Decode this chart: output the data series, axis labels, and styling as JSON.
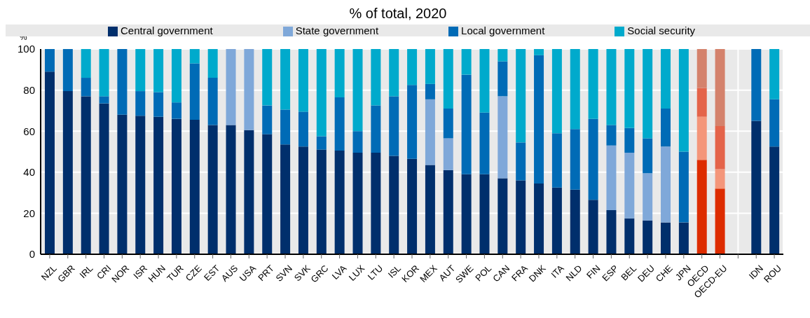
{
  "chart_data": {
    "type": "bar",
    "stacked": true,
    "title": "% of total, 2020",
    "ylabel": "%",
    "categories": [
      "NZL",
      "GBR",
      "IRL",
      "CRI",
      "NOR",
      "ISR",
      "HUN",
      "TUR",
      "CZE",
      "EST",
      "AUS",
      "USA",
      "PRT",
      "SVN",
      "SVK",
      "GRC",
      "LVA",
      "LUX",
      "LTU",
      "ISL",
      "KOR",
      "MEX",
      "AUT",
      "SWE",
      "POL",
      "CAN",
      "FRA",
      "DNK",
      "ITA",
      "NLD",
      "FIN",
      "ESP",
      "BEL",
      "DEU",
      "CHE",
      "JPN",
      "OECD",
      "OECD-EU",
      null,
      "IDN",
      "ROU"
    ],
    "series": [
      {
        "name": "Central government",
        "color": "#002f6c",
        "values": [
          89,
          79.5,
          77,
          73.5,
          68,
          67.5,
          67,
          66,
          65.5,
          63,
          63,
          60.5,
          58.5,
          53.5,
          52.5,
          51,
          50.5,
          49.5,
          49.5,
          48,
          46.5,
          43.5,
          41,
          39,
          39,
          37,
          36,
          34.5,
          32.5,
          31.5,
          26.5,
          21.5,
          17.5,
          16.5,
          15.5,
          15.5,
          46,
          32,
          null,
          65,
          52.5
        ],
        "colors": [
          "#002f6c",
          "#002f6c",
          "#002f6c",
          "#002f6c",
          "#002f6c",
          "#002f6c",
          "#002f6c",
          "#002f6c",
          "#002f6c",
          "#002f6c",
          "#002f6c",
          "#002f6c",
          "#002f6c",
          "#002f6c",
          "#002f6c",
          "#002f6c",
          "#002f6c",
          "#002f6c",
          "#002f6c",
          "#002f6c",
          "#002f6c",
          "#002f6c",
          "#002f6c",
          "#002f6c",
          "#002f6c",
          "#002f6c",
          "#002f6c",
          "#002f6c",
          "#002f6c",
          "#002f6c",
          "#002f6c",
          "#002f6c",
          "#002f6c",
          "#002f6c",
          "#002f6c",
          "#002f6c",
          "#dd2c00",
          "#dd2c00",
          "#002f6c",
          "#002f6c",
          "#002f6c"
        ]
      },
      {
        "name": "State government",
        "color": "#7fa8d9",
        "values": [
          0,
          0,
          0,
          0,
          0,
          0,
          0,
          0,
          0,
          0,
          37,
          39.5,
          0,
          0,
          0,
          0,
          0,
          0,
          0,
          0,
          0,
          32,
          15.5,
          0,
          0,
          40,
          0,
          0,
          0,
          0,
          0,
          31.5,
          32,
          23,
          37,
          0,
          21,
          9.5,
          null,
          0,
          0
        ],
        "colors": [
          "#7fa8d9",
          "#7fa8d9",
          "#7fa8d9",
          "#7fa8d9",
          "#7fa8d9",
          "#7fa8d9",
          "#7fa8d9",
          "#7fa8d9",
          "#7fa8d9",
          "#7fa8d9",
          "#7fa8d9",
          "#7fa8d9",
          "#7fa8d9",
          "#7fa8d9",
          "#7fa8d9",
          "#7fa8d9",
          "#7fa8d9",
          "#7fa8d9",
          "#7fa8d9",
          "#7fa8d9",
          "#7fa8d9",
          "#7fa8d9",
          "#7fa8d9",
          "#7fa8d9",
          "#7fa8d9",
          "#7fa8d9",
          "#7fa8d9",
          "#7fa8d9",
          "#7fa8d9",
          "#7fa8d9",
          "#7fa8d9",
          "#7fa8d9",
          "#7fa8d9",
          "#7fa8d9",
          "#7fa8d9",
          "#7fa8d9",
          "#f4967a",
          "#f4967a",
          "#7fa8d9",
          "#7fa8d9",
          "#7fa8d9"
        ]
      },
      {
        "name": "Local government",
        "color": "#006bb6",
        "values": [
          11,
          20.5,
          9,
          3.5,
          32,
          12,
          12,
          8,
          27.5,
          23,
          0,
          0,
          14,
          17,
          17,
          6.5,
          26,
          10.5,
          23,
          29,
          36,
          7.5,
          14.5,
          48.5,
          30,
          17,
          18.5,
          62.5,
          26.5,
          29.5,
          39.5,
          10,
          12,
          17,
          18.5,
          34.5,
          14,
          21,
          null,
          35,
          23
        ],
        "colors": [
          "#006bb6",
          "#006bb6",
          "#006bb6",
          "#006bb6",
          "#006bb6",
          "#006bb6",
          "#006bb6",
          "#006bb6",
          "#006bb6",
          "#006bb6",
          "#006bb6",
          "#006bb6",
          "#006bb6",
          "#006bb6",
          "#006bb6",
          "#006bb6",
          "#006bb6",
          "#006bb6",
          "#006bb6",
          "#006bb6",
          "#006bb6",
          "#006bb6",
          "#006bb6",
          "#006bb6",
          "#006bb6",
          "#006bb6",
          "#006bb6",
          "#006bb6",
          "#006bb6",
          "#006bb6",
          "#006bb6",
          "#006bb6",
          "#006bb6",
          "#006bb6",
          "#006bb6",
          "#006bb6",
          "#e4644a",
          "#e4644a",
          "#006bb6",
          "#006bb6",
          "#006bb6"
        ]
      },
      {
        "name": "Social security",
        "color": "#00aacc",
        "values": [
          0,
          0,
          14,
          23,
          0,
          20.5,
          21,
          26,
          7,
          14,
          0,
          0,
          27.5,
          29.5,
          30.5,
          42.5,
          23.5,
          40,
          27.5,
          23,
          17.5,
          17,
          29,
          12.5,
          31,
          6,
          45.5,
          3,
          41,
          39,
          34,
          37,
          38.5,
          43.5,
          29,
          50,
          19,
          37.5,
          null,
          0,
          24.5
        ],
        "colors": [
          "#00aacc",
          "#00aacc",
          "#00aacc",
          "#00aacc",
          "#00aacc",
          "#00aacc",
          "#00aacc",
          "#00aacc",
          "#00aacc",
          "#00aacc",
          "#00aacc",
          "#00aacc",
          "#00aacc",
          "#00aacc",
          "#00aacc",
          "#00aacc",
          "#00aacc",
          "#00aacc",
          "#00aacc",
          "#00aacc",
          "#00aacc",
          "#00aacc",
          "#00aacc",
          "#00aacc",
          "#00aacc",
          "#00aacc",
          "#00aacc",
          "#00aacc",
          "#00aacc",
          "#00aacc",
          "#00aacc",
          "#00aacc",
          "#00aacc",
          "#00aacc",
          "#00aacc",
          "#00aacc",
          "#d4826c",
          "#d4826c",
          "#00aacc",
          "#00aacc",
          "#00aacc"
        ]
      }
    ],
    "ylim": [
      0,
      100
    ],
    "yticks": [
      0,
      20,
      40,
      60,
      80,
      100
    ],
    "grid": true,
    "legend": "top"
  }
}
